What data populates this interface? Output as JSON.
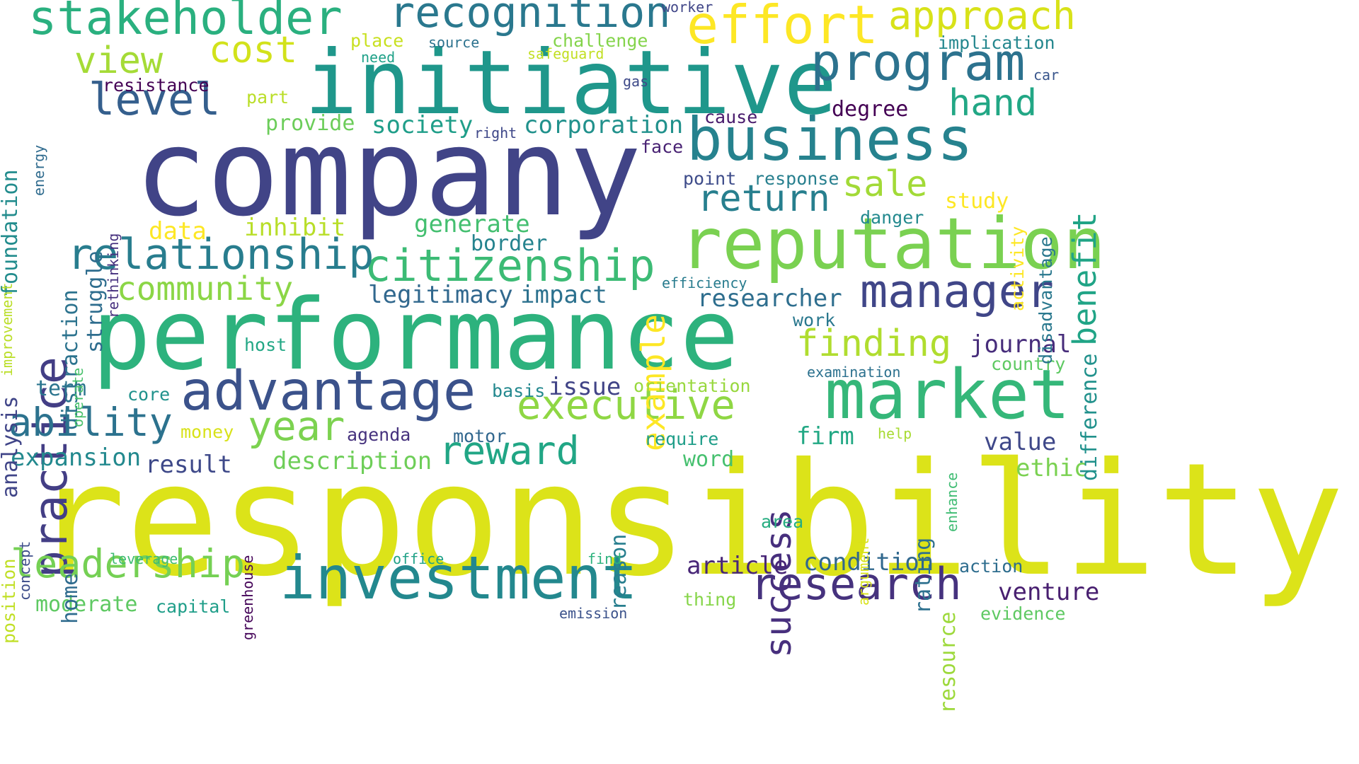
{
  "words": [
    {
      "t": "responsibility",
      "c": "#dce319"
    },
    {
      "t": "performance",
      "c": "#2db27d"
    },
    {
      "t": "company",
      "c": "#414487"
    },
    {
      "t": "initiative",
      "c": "#1f978b"
    },
    {
      "t": "reputation",
      "c": "#7ad151"
    },
    {
      "t": "market",
      "c": "#35b779"
    },
    {
      "t": "business",
      "c": "#26828e"
    },
    {
      "t": "investment",
      "c": "#23888e"
    },
    {
      "t": "advantage",
      "c": "#3b528b"
    },
    {
      "t": "effort",
      "c": "#fde725"
    },
    {
      "t": "program",
      "c": "#2c728e"
    },
    {
      "t": "stakeholder",
      "c": "#2ab07f"
    },
    {
      "t": "practice",
      "c": "#433e85"
    },
    {
      "t": "citizenship",
      "c": "#3cbb75"
    },
    {
      "t": "manager",
      "c": "#404688"
    },
    {
      "t": "relationship",
      "c": "#287d8e"
    },
    {
      "t": "recognition",
      "c": "#2a788e"
    },
    {
      "t": "research",
      "c": "#46327e"
    },
    {
      "t": "executive",
      "c": "#8fd744"
    },
    {
      "t": "leadership",
      "c": "#75d054"
    },
    {
      "t": "ability",
      "c": "#2c728e"
    },
    {
      "t": "approach",
      "c": "#d8e219"
    },
    {
      "t": "success",
      "c": "#472f7d"
    },
    {
      "t": "level",
      "c": "#355f8d"
    },
    {
      "t": "reward",
      "c": "#21a685"
    },
    {
      "t": "return",
      "c": "#277f8e"
    },
    {
      "t": "finding",
      "c": "#b0dd2f"
    },
    {
      "t": "community",
      "c": "#8bd646"
    },
    {
      "t": "cost",
      "c": "#d2e21b"
    },
    {
      "t": "hand",
      "c": "#22a785"
    },
    {
      "t": "benefit",
      "c": "#20a486"
    },
    {
      "t": "example",
      "c": "#fde725"
    },
    {
      "t": "sale",
      "c": "#a2da37"
    },
    {
      "t": "year",
      "c": "#7cd250"
    },
    {
      "t": "view",
      "c": "#a5db36"
    },
    {
      "t": "legitimacy",
      "c": "#31688e"
    },
    {
      "t": "impact",
      "c": "#2c718e"
    },
    {
      "t": "researcher",
      "c": "#2e6e8e"
    },
    {
      "t": "corporation",
      "c": "#21918c"
    },
    {
      "t": "society",
      "c": "#1f9e89"
    },
    {
      "t": "expansion",
      "c": "#23898e"
    },
    {
      "t": "moderate",
      "c": "#5ec962"
    },
    {
      "t": "description",
      "c": "#6ece58"
    },
    {
      "t": "journal",
      "c": "#472d7b"
    },
    {
      "t": "condition",
      "c": "#31688e"
    },
    {
      "t": "article",
      "c": "#482677"
    },
    {
      "t": "venture",
      "c": "#481f70"
    },
    {
      "t": "value",
      "c": "#3f4889"
    },
    {
      "t": "result",
      "c": "#3e4989"
    },
    {
      "t": "generate",
      "c": "#44bf70"
    },
    {
      "t": "border",
      "c": "#25838e"
    },
    {
      "t": "inhibit",
      "c": "#b8de29"
    },
    {
      "t": "data",
      "c": "#fde725"
    },
    {
      "t": "term",
      "c": "#2b758e"
    },
    {
      "t": "firm",
      "c": "#22a884"
    },
    {
      "t": "word",
      "c": "#46c06f"
    },
    {
      "t": "ethic",
      "c": "#7ad151"
    },
    {
      "t": "issue",
      "c": "#414487"
    },
    {
      "t": "provide",
      "c": "#6ccd5a"
    },
    {
      "t": "degree",
      "c": "#440154"
    },
    {
      "t": "difference",
      "c": "#21918c"
    },
    {
      "t": "distraction",
      "c": "#2c738e"
    },
    {
      "t": "struggle",
      "c": "#2e6d8e"
    },
    {
      "t": "foundation",
      "c": "#228c8d"
    },
    {
      "t": "analysis",
      "c": "#404588"
    },
    {
      "t": "reason",
      "c": "#277e8e"
    },
    {
      "t": "rating",
      "c": "#2d708e"
    },
    {
      "t": "resource",
      "c": "#9dd93b"
    },
    {
      "t": "capital",
      "c": "#1f9e89"
    },
    {
      "t": "resistance",
      "c": "#440154"
    },
    {
      "t": "home",
      "c": "#2f6b8e"
    },
    {
      "t": "country",
      "c": "#5ec962"
    },
    {
      "t": "orientation",
      "c": "#98d83e"
    },
    {
      "t": "worker",
      "c": "#404688"
    },
    {
      "t": "place",
      "c": "#c8e020"
    },
    {
      "t": "source",
      "c": "#2c728e"
    },
    {
      "t": "challenge",
      "c": "#84d44b"
    },
    {
      "t": "need",
      "c": "#1fa188"
    },
    {
      "t": "safeguard",
      "c": "#c2df23"
    },
    {
      "t": "implication",
      "c": "#24878e"
    },
    {
      "t": "car",
      "c": "#39568c"
    },
    {
      "t": "gas",
      "c": "#3e4a89"
    },
    {
      "t": "part",
      "c": "#bade28"
    },
    {
      "t": "cause",
      "c": "#481a6c"
    },
    {
      "t": "right",
      "c": "#3f4889"
    },
    {
      "t": "face",
      "c": "#482173"
    },
    {
      "t": "point",
      "c": "#3e4c8a"
    },
    {
      "t": "response",
      "c": "#277f8e"
    },
    {
      "t": "study",
      "c": "#fde725"
    },
    {
      "t": "danger",
      "c": "#23898e"
    },
    {
      "t": "activity",
      "c": "#fde725"
    },
    {
      "t": "disadvantage",
      "c": "#2a788e"
    },
    {
      "t": "energy",
      "c": "#2f6b8e"
    },
    {
      "t": "rethinking",
      "c": "#46307e"
    },
    {
      "t": "improvement",
      "c": "#bade28"
    },
    {
      "t": "efficiency",
      "c": "#287c8e"
    },
    {
      "t": "work",
      "c": "#2a788e"
    },
    {
      "t": "examination",
      "c": "#2c718e"
    },
    {
      "t": "host",
      "c": "#22a785"
    },
    {
      "t": "operate",
      "c": "#4ac16d"
    },
    {
      "t": "core",
      "c": "#20928c"
    },
    {
      "t": "basis",
      "c": "#23888e"
    },
    {
      "t": "money",
      "c": "#d8e219"
    },
    {
      "t": "agenda",
      "c": "#46327e"
    },
    {
      "t": "motor",
      "c": "#31678e"
    },
    {
      "t": "require",
      "c": "#1f9e89"
    },
    {
      "t": "help",
      "c": "#a8db34"
    },
    {
      "t": "enhance",
      "c": "#3fbc73"
    },
    {
      "t": "greenhouse",
      "c": "#450559"
    },
    {
      "t": "argument",
      "c": "#d8e219"
    },
    {
      "t": "area",
      "c": "#27ad81"
    },
    {
      "t": "position",
      "c": "#c0df25"
    },
    {
      "t": "concept",
      "c": "#3d4d8a"
    },
    {
      "t": "leverage",
      "c": "#3fbc73"
    },
    {
      "t": "office",
      "c": "#1fa187"
    },
    {
      "t": "find",
      "c": "#2db27d"
    },
    {
      "t": "action",
      "c": "#2e6d8e"
    },
    {
      "t": "thing",
      "c": "#86d549"
    },
    {
      "t": "emission",
      "c": "#3b528b"
    },
    {
      "t": "evidence",
      "c": "#5ec962"
    }
  ]
}
